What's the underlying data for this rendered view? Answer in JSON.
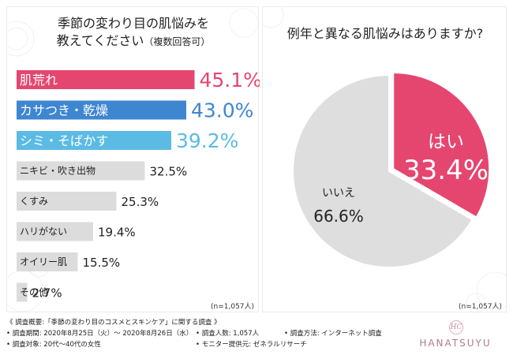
{
  "left": {
    "title_line1": "季節の変わり目の肌悩みを",
    "title_line2": "教えてください",
    "title_note": "（複数回答可）",
    "sample": "(n=1,057人)"
  },
  "right": {
    "title": "例年と異なる肌悩みはありますか?",
    "sample": "(n=1,057人)"
  },
  "footer": {
    "overview": "《 調査概要:「季節の変わり目のコスメとスキンケア」に関する調査 》",
    "period": "• 調査期間: 2020年8月25日（火）～ 2020年8月26日（水）",
    "respondents": "• 調査人数: 1,057人",
    "method": "• 調査方法: インターネット調査",
    "target": "• 調査対象: 20代～40代の女性",
    "provider": "• モニター提供元: ゼネラルリサーチ",
    "logo_mark": "HC",
    "logo_text": "HANATSUYU"
  },
  "colors": {
    "pink": "#e5466f",
    "blue": "#3f86d1",
    "light_blue": "#5bbbe4",
    "gray": "#dcdcdc",
    "pie_gray": "#dedede"
  },
  "chart_data": [
    {
      "type": "bar",
      "title": "季節の変わり目の肌悩みを教えてください（複数回答可）",
      "categories": [
        "肌荒れ",
        "カサつき・乾燥",
        "シミ・そばかす",
        "ニキビ・吹き出物",
        "くすみ",
        "ハリがない",
        "オイリー肌",
        "その他"
      ],
      "values": [
        45.1,
        43.0,
        39.2,
        32.5,
        25.3,
        19.4,
        15.5,
        2.7
      ],
      "labels": [
        "45.1%",
        "43.0%",
        "39.2%",
        "32.5%",
        "25.3%",
        "19.4%",
        "15.5%",
        "2.7%"
      ],
      "highlight": [
        "pink",
        "blue",
        "light_blue",
        "gray",
        "gray",
        "gray",
        "gray",
        "gray"
      ],
      "unit": "%",
      "orientation": "horizontal"
    },
    {
      "type": "pie",
      "title": "例年と異なる肌悩みはありますか?",
      "labels": [
        "はい",
        "いいえ"
      ],
      "values": [
        33.4,
        66.6
      ],
      "value_labels": [
        "33.4%",
        "66.6%"
      ],
      "colors": [
        "pink",
        "pie_gray"
      ]
    }
  ]
}
